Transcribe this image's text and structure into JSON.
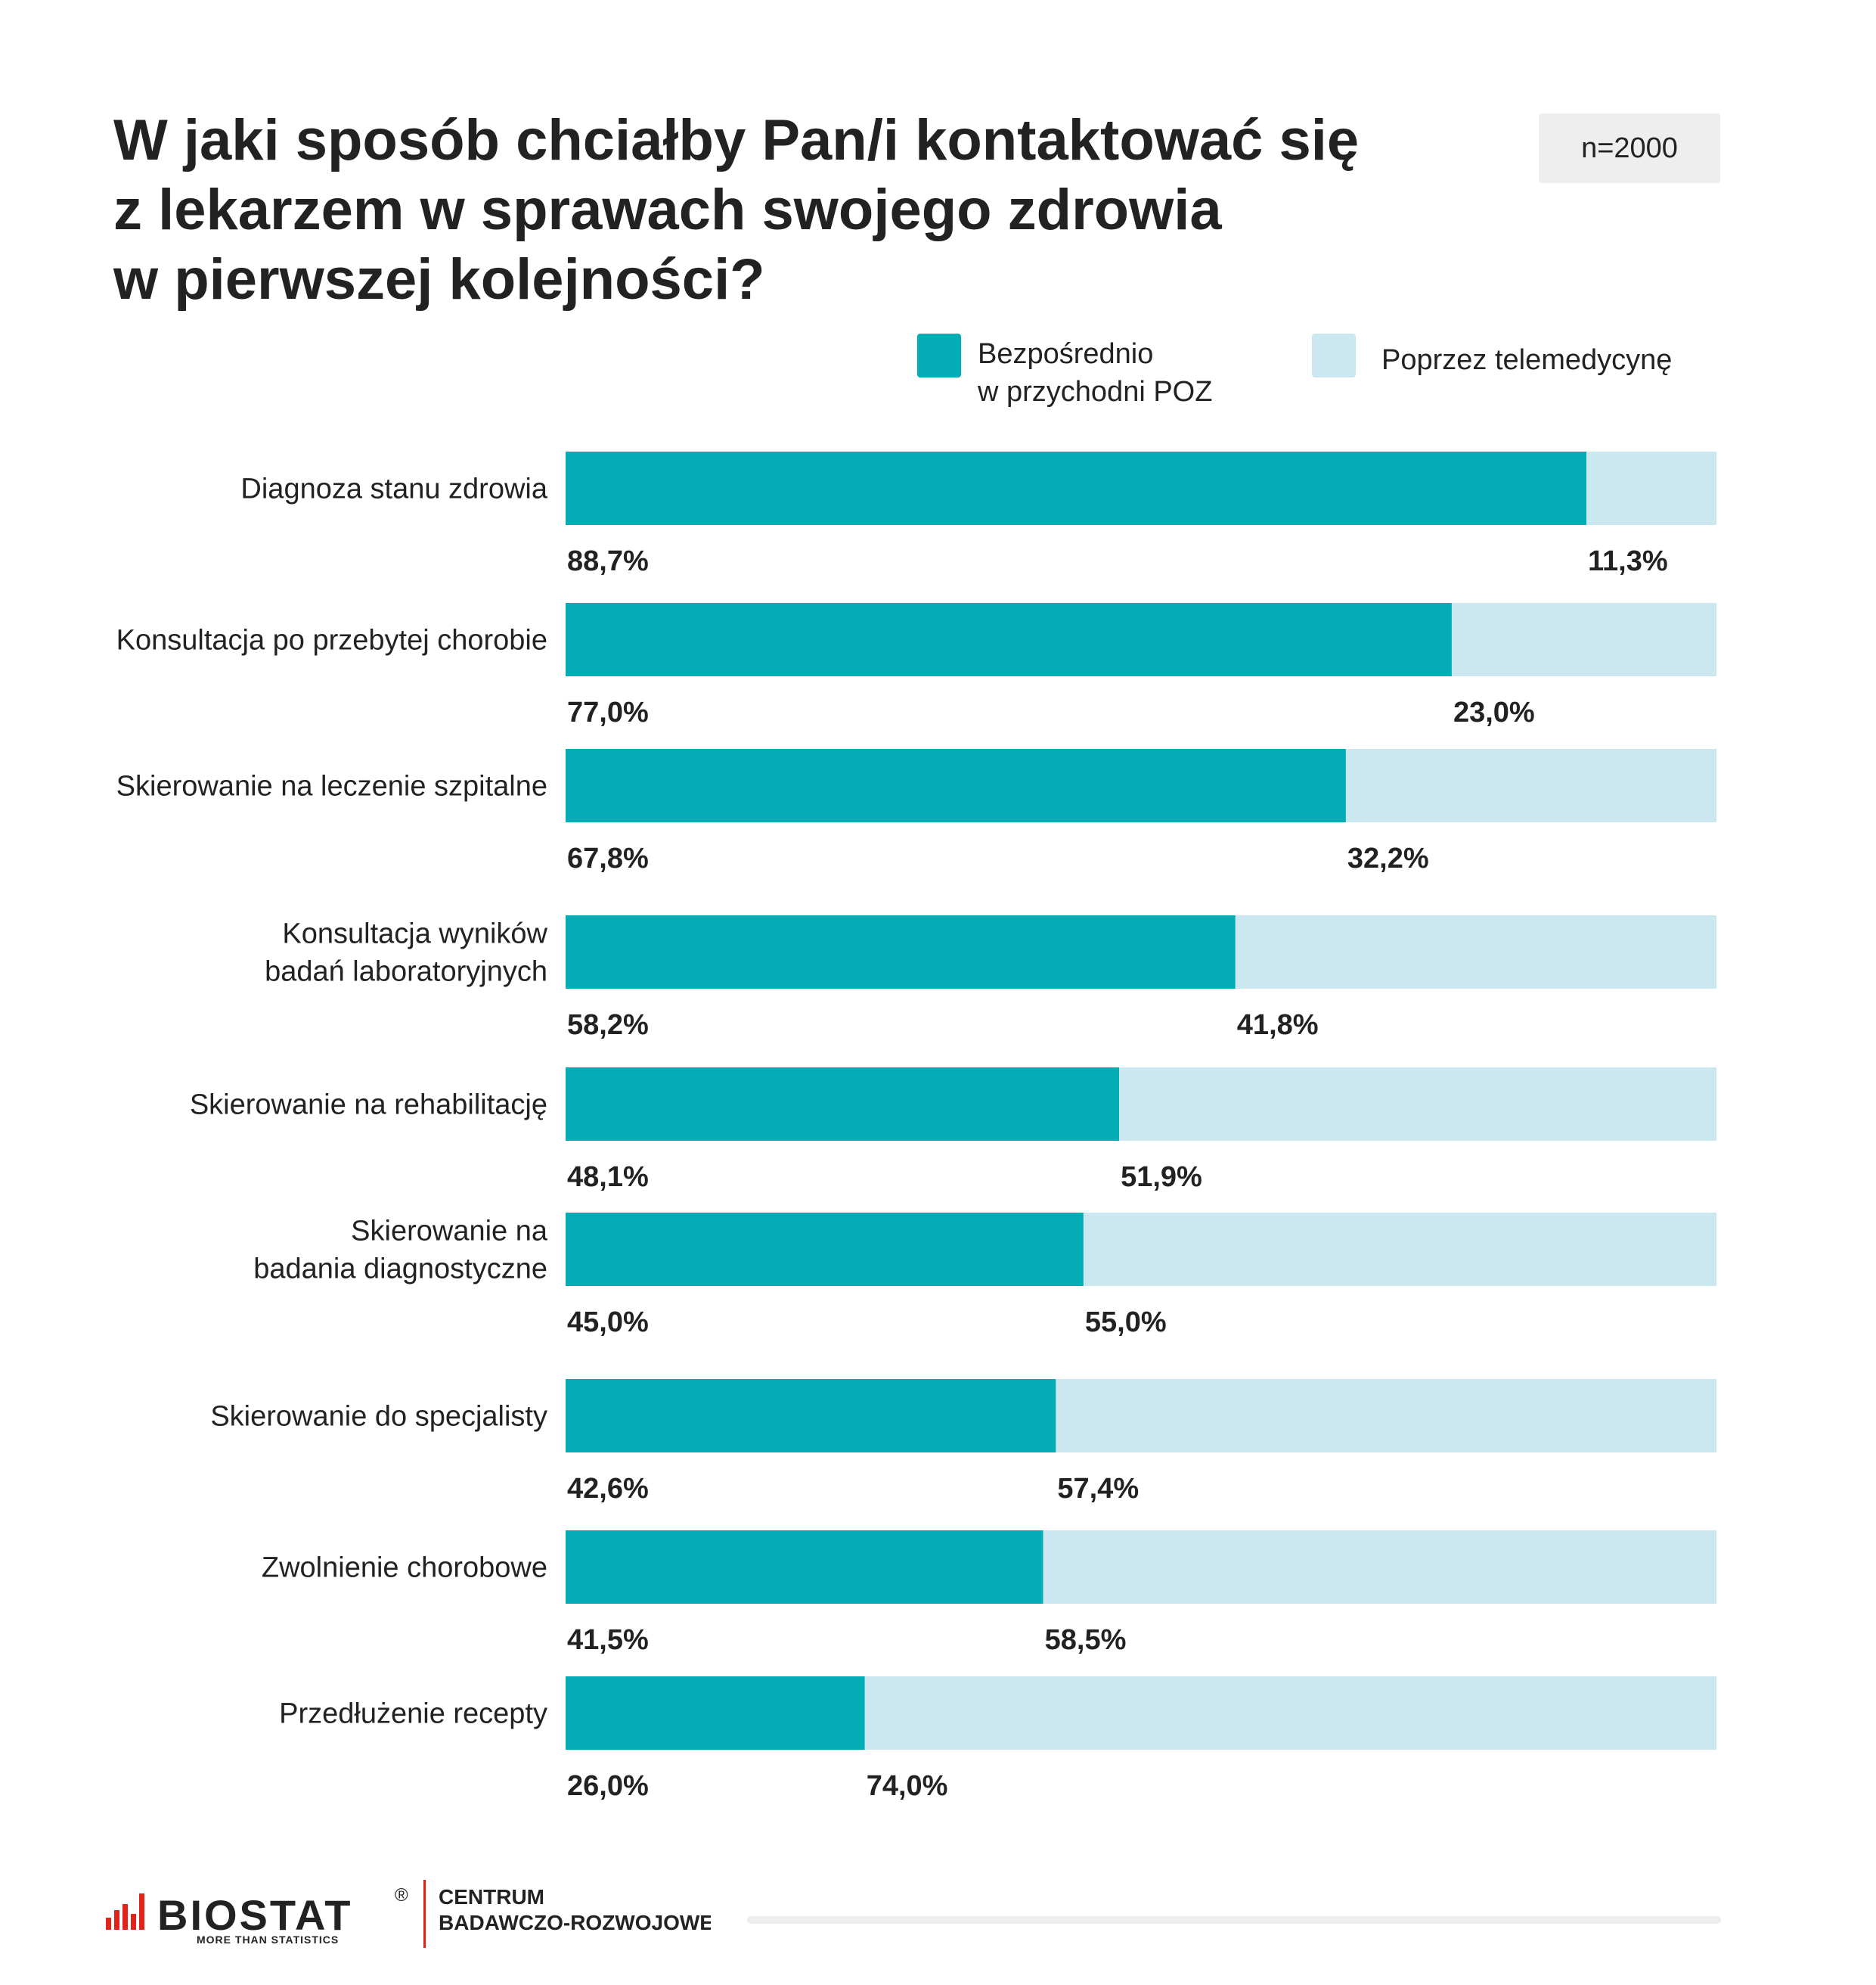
{
  "title_lines": [
    "W jaki sposób chciałby Pan/i kontaktować się",
    "z lekarzem w sprawach swojego zdrowia",
    "w pierwszej kolejności?"
  ],
  "sample_size": "n=2000",
  "legend": [
    {
      "lines": [
        "Bezpośrednio",
        "w przychodni POZ"
      ],
      "color": "#04acb6"
    },
    {
      "lines": [
        "Poprzez telemedycynę"
      ],
      "color": "#cbe8f0"
    }
  ],
  "chart_data": {
    "type": "bar",
    "orientation": "horizontal",
    "stacked": true,
    "percent_stacked": true,
    "xlim": [
      0,
      100
    ],
    "grid": false,
    "legend_position": "top-right",
    "categories": [
      [
        "Diagnoza stanu zdrowia"
      ],
      [
        "Konsultacja po przebytej chorobie"
      ],
      [
        "Skierowanie na leczenie szpitalne"
      ],
      [
        "Konsultacja wyników",
        "badań laboratoryjnych"
      ],
      [
        "Skierowanie na rehabilitację"
      ],
      [
        "Skierowanie na",
        "badania diagnostyczne"
      ],
      [
        "Skierowanie do specjalisty"
      ],
      [
        "Zwolnienie chorobowe"
      ],
      [
        "Przedłużenie recepty"
      ]
    ],
    "series": [
      {
        "name": "Bezpośrednio w przychodni POZ",
        "color": "#04acb6",
        "values": [
          88.7,
          77.0,
          67.8,
          58.2,
          48.1,
          45.0,
          42.6,
          41.5,
          26.0
        ],
        "labels": [
          "88,7%",
          "77,0%",
          "67,8%",
          "58,2%",
          "48,1%",
          "45,0%",
          "42,6%",
          "41,5%",
          "26,0%"
        ]
      },
      {
        "name": "Poprzez telemedycynę",
        "color": "#cbe8f0",
        "values": [
          11.3,
          23.0,
          32.2,
          41.8,
          51.9,
          55.0,
          57.4,
          58.5,
          74.0
        ],
        "labels": [
          "11,3%",
          "23,0%",
          "32,2%",
          "41,8%",
          "51,9%",
          "55,0%",
          "57,4%",
          "58,5%",
          "74,0%"
        ]
      }
    ]
  },
  "footer": {
    "brand": "BIOSTAT",
    "registered_mark": "®",
    "tagline": "MORE THAN STATISTICS",
    "unit_lines": [
      "CENTRUM",
      "BADAWCZO-ROZWOJOWE"
    ],
    "brand_color": "#e2231a",
    "text_color": "#222222"
  }
}
